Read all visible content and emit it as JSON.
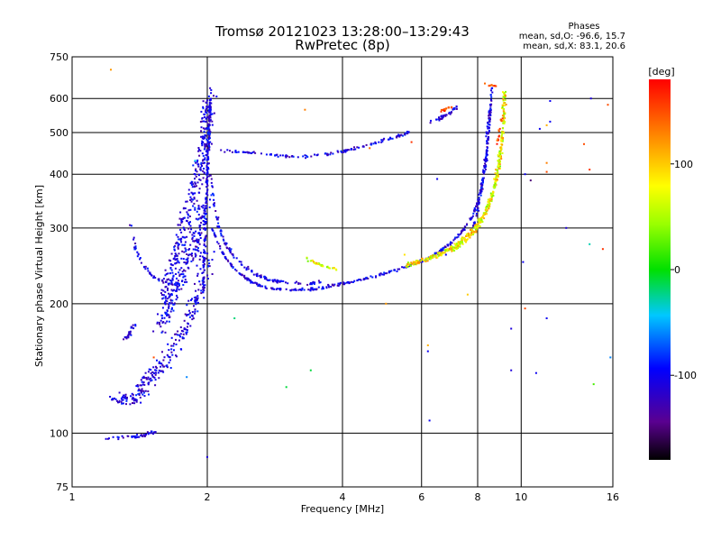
{
  "chart_data": {
    "type": "scatter",
    "title": "Tromsø 20121023 13:28:00–13:29:43",
    "subtitle": "RwPretec (8p)",
    "xlabel": "Frequency [MHz]",
    "ylabel": "Stationary phase Virtual Height [km]",
    "x_scale": "log",
    "y_scale": "log",
    "xlim": [
      1,
      16
    ],
    "ylim": [
      75,
      750
    ],
    "x_ticks": [
      1,
      2,
      4,
      6,
      8,
      10,
      16
    ],
    "x_tick_labels": [
      "1",
      "2",
      "4",
      "6",
      "8",
      "10",
      "16"
    ],
    "y_ticks": [
      75,
      100,
      200,
      300,
      400,
      500,
      600,
      750
    ],
    "y_tick_labels": [
      "75",
      "100",
      "200",
      "300",
      "400",
      "500",
      "600",
      "750"
    ],
    "grid": true,
    "info": {
      "heading": "Phases",
      "line_o": "mean, sd,O: -96.6, 15.7",
      "line_x": "mean, sd,X: 83.1, 20.6"
    },
    "colorbar": {
      "label": "[deg]",
      "range": [
        -180,
        180
      ],
      "ticks": [
        100,
        0,
        -100
      ],
      "tick_labels": [
        "100",
        "0",
        "-100"
      ]
    },
    "series": [
      {
        "phase": -110,
        "color_range": [
          -135,
          -80
        ],
        "traces": [
          {
            "points": [
              [
                1.2,
                97
              ],
              [
                1.3,
                98
              ],
              [
                1.4,
                98
              ],
              [
                1.45,
                99
              ],
              [
                1.5,
                100
              ],
              [
                1.55,
                101
              ]
            ],
            "spread": [
              0.03,
              0.012
            ],
            "count": 45
          },
          {
            "points": [
              [
                1.26,
                120
              ],
              [
                1.3,
                119
              ],
              [
                1.36,
                120
              ],
              [
                1.4,
                123
              ],
              [
                1.45,
                130
              ],
              [
                1.5,
                137
              ],
              [
                1.56,
                140
              ],
              [
                1.62,
                150
              ],
              [
                1.7,
                160
              ],
              [
                1.78,
                175
              ],
              [
                1.86,
                192
              ],
              [
                1.92,
                210
              ],
              [
                1.96,
                235
              ],
              [
                1.99,
                270
              ]
            ],
            "spread": [
              0.06,
              0.045
            ],
            "count": 260
          },
          {
            "points": [
              [
                1.3,
                165
              ],
              [
                1.34,
                170
              ],
              [
                1.38,
                180
              ]
            ],
            "spread": [
              0.02,
              0.02
            ],
            "count": 25
          },
          {
            "points": [
              [
                1.35,
                315
              ],
              [
                1.38,
                270
              ],
              [
                1.42,
                250
              ],
              [
                1.47,
                238
              ],
              [
                1.55,
                228
              ],
              [
                1.65,
                222
              ],
              [
                1.75,
                223
              ]
            ],
            "spread": [
              0.015,
              0.012
            ],
            "count": 55
          },
          {
            "points": [
              [
                1.6,
                200
              ],
              [
                1.65,
                230
              ],
              [
                1.7,
                260
              ],
              [
                1.76,
                290
              ],
              [
                1.82,
                330
              ],
              [
                1.88,
                370
              ],
              [
                1.93,
                420
              ],
              [
                1.97,
                480
              ],
              [
                2.0,
                540
              ],
              [
                2.02,
                600
              ]
            ],
            "spread": [
              0.05,
              0.06
            ],
            "count": 320
          },
          {
            "points": [
              [
                1.55,
                175
              ],
              [
                1.62,
                190
              ],
              [
                1.7,
                210
              ],
              [
                1.78,
                240
              ],
              [
                1.86,
                270
              ],
              [
                1.92,
                300
              ],
              [
                1.98,
                350
              ]
            ],
            "spread": [
              0.05,
              0.06
            ],
            "count": 200
          },
          {
            "points": [
              [
                1.96,
                220
              ],
              [
                1.98,
                300
              ],
              [
                2.0,
                400
              ],
              [
                2.02,
                500
              ],
              [
                2.03,
                600
              ]
            ],
            "spread": [
              0.008,
              0.08
            ],
            "count": 180
          },
          {
            "points": [
              [
                2.03,
                400
              ],
              [
                2.08,
                330
              ],
              [
                2.15,
                290
              ],
              [
                2.25,
                265
              ],
              [
                2.4,
                245
              ],
              [
                2.6,
                232
              ],
              [
                2.8,
                226
              ],
              [
                3.0,
                224
              ],
              [
                3.3,
                223
              ],
              [
                3.6,
                224
              ]
            ],
            "spread": [
              0.01,
              0.012
            ],
            "count": 130
          },
          {
            "points": [
              [
                2.05,
                300
              ],
              [
                2.15,
                265
              ],
              [
                2.3,
                240
              ],
              [
                2.5,
                225
              ],
              [
                2.7,
                218
              ],
              [
                3.0,
                215
              ],
              [
                3.4,
                216
              ],
              [
                3.8,
                220
              ],
              [
                4.3,
                226
              ],
              [
                4.8,
                233
              ],
              [
                5.3,
                240
              ],
              [
                5.8,
                248
              ],
              [
                6.2,
                255
              ],
              [
                6.6,
                265
              ],
              [
                7.0,
                278
              ],
              [
                7.4,
                295
              ],
              [
                7.8,
                320
              ],
              [
                8.0,
                345
              ],
              [
                8.2,
                380
              ],
              [
                8.35,
                430
              ],
              [
                8.45,
                490
              ],
              [
                8.55,
                560
              ],
              [
                8.6,
                640
              ]
            ],
            "spread": [
              0.006,
              0.01
            ],
            "count": 420
          },
          {
            "points": [
              [
                2.15,
                455
              ],
              [
                2.4,
                450
              ],
              [
                2.7,
                445
              ],
              [
                3.0,
                440
              ],
              [
                3.4,
                440
              ],
              [
                3.8,
                447
              ],
              [
                4.3,
                460
              ],
              [
                4.8,
                475
              ],
              [
                5.3,
                490
              ],
              [
                5.7,
                505
              ]
            ],
            "spread": [
              0.01,
              0.01
            ],
            "count": 130
          },
          {
            "points": [
              [
                6.3,
                530
              ],
              [
                6.6,
                540
              ],
              [
                6.9,
                555
              ],
              [
                7.2,
                575
              ]
            ],
            "spread": [
              0.01,
              0.02
            ],
            "count": 35
          },
          {
            "points": [
              [
                7.8,
                300
              ],
              [
                8.0,
                330
              ],
              [
                8.15,
                370
              ],
              [
                8.3,
                420
              ],
              [
                8.42,
                490
              ],
              [
                8.52,
                560
              ]
            ],
            "spread": [
              0.012,
              0.015
            ],
            "count": 80
          }
        ]
      },
      {
        "phase": 83,
        "color_range": [
          30,
          130
        ],
        "traces": [
          {
            "points": [
              [
                3.3,
                255
              ],
              [
                3.5,
                248
              ],
              [
                3.7,
                243
              ],
              [
                3.9,
                240
              ]
            ],
            "spread": [
              0.01,
              0.01
            ],
            "count": 35
          },
          {
            "points": [
              [
                5.5,
                245
              ],
              [
                5.9,
                250
              ],
              [
                6.3,
                256
              ],
              [
                6.7,
                263
              ],
              [
                7.1,
                272
              ],
              [
                7.5,
                285
              ],
              [
                7.9,
                302
              ],
              [
                8.3,
                325
              ],
              [
                8.6,
                355
              ],
              [
                8.85,
                400
              ],
              [
                9.0,
                450
              ],
              [
                9.1,
                500
              ],
              [
                9.15,
                560
              ],
              [
                9.18,
                620
              ]
            ],
            "spread": [
              0.012,
              0.018
            ],
            "count": 330
          },
          {
            "points": [
              [
                7.0,
                265
              ],
              [
                7.5,
                280
              ],
              [
                8.0,
                300
              ],
              [
                8.4,
                330
              ],
              [
                8.7,
                370
              ],
              [
                8.9,
                420
              ],
              [
                9.05,
                480
              ]
            ],
            "spread": [
              0.012,
              0.015
            ],
            "count": 140
          }
        ]
      },
      {
        "phase": 150,
        "color_range": [
          130,
          175
        ],
        "traces": [
          {
            "points": [
              [
                6.6,
                560
              ],
              [
                6.9,
                570
              ],
              [
                7.2,
                580
              ]
            ],
            "spread": [
              0.008,
              0.01
            ],
            "count": 15
          },
          {
            "points": [
              [
                8.45,
                640
              ],
              [
                8.6,
                645
              ],
              [
                8.8,
                640
              ]
            ],
            "spread": [
              0.008,
              0.005
            ],
            "count": 10
          },
          {
            "points": [
              [
                8.8,
                460
              ],
              [
                8.95,
                500
              ],
              [
                9.05,
                540
              ]
            ],
            "spread": [
              0.008,
              0.01
            ],
            "count": 15
          }
        ]
      }
    ],
    "scatter_points": [
      [
        1.22,
        700,
        120
      ],
      [
        1.88,
        430,
        -40
      ],
      [
        2.0,
        88,
        -110
      ],
      [
        2.3,
        185,
        -20
      ],
      [
        3.3,
        565,
        130
      ],
      [
        3.4,
        140,
        -10
      ],
      [
        3.0,
        128,
        -10
      ],
      [
        4.6,
        460,
        140
      ],
      [
        5.5,
        260,
        90
      ],
      [
        5.7,
        475,
        160
      ],
      [
        6.2,
        160,
        110
      ],
      [
        6.2,
        155,
        -100
      ],
      [
        6.25,
        107,
        -100
      ],
      [
        6.5,
        390,
        -100
      ],
      [
        6.8,
        260,
        -100
      ],
      [
        7.6,
        210,
        100
      ],
      [
        8.3,
        650,
        140
      ],
      [
        9.5,
        175,
        -110
      ],
      [
        9.5,
        140,
        -110
      ],
      [
        10.1,
        250,
        -100
      ],
      [
        10.2,
        195,
        150
      ],
      [
        10.2,
        400,
        -100
      ],
      [
        10.5,
        387,
        -150
      ],
      [
        11.0,
        510,
        -100
      ],
      [
        11.4,
        520,
        110
      ],
      [
        11.4,
        425,
        130
      ],
      [
        11.4,
        405,
        150
      ],
      [
        11.6,
        530,
        -100
      ],
      [
        11.6,
        592,
        -100
      ],
      [
        11.4,
        185,
        -100
      ],
      [
        10.8,
        138,
        -100
      ],
      [
        13.8,
        470,
        150
      ],
      [
        14.2,
        275,
        -30
      ],
      [
        14.5,
        130,
        20
      ],
      [
        14.2,
        410,
        160
      ],
      [
        15.2,
        268,
        160
      ],
      [
        15.6,
        580,
        150
      ],
      [
        15.8,
        150,
        -60
      ],
      [
        14.3,
        600,
        -110
      ],
      [
        12.6,
        300,
        -110
      ],
      [
        1.52,
        150,
        150
      ],
      [
        1.8,
        135,
        -60
      ],
      [
        5.0,
        200,
        120
      ]
    ]
  }
}
